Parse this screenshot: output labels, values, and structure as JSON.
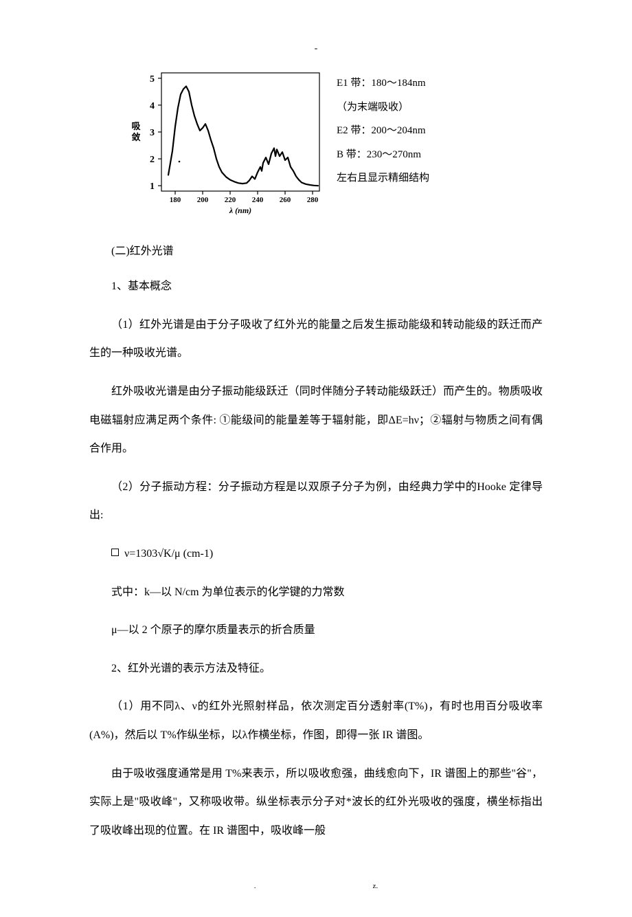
{
  "top_dash": "-",
  "figure": {
    "chart": {
      "type": "line",
      "xlabel": "λ (nm)",
      "ylabel": "吸\n敛",
      "xlim": [
        170,
        285
      ],
      "ylim": [
        0.8,
        5.2
      ],
      "xtick_labels": [
        "180",
        "200",
        "220",
        "240",
        "260",
        "280"
      ],
      "xtick_positions": [
        180,
        200,
        220,
        240,
        260,
        280
      ],
      "ytick_labels": [
        "1",
        "2",
        "3",
        "4",
        "5"
      ],
      "ytick_positions": [
        1,
        2,
        3,
        4,
        5
      ],
      "line_color": "#000000",
      "line_width": 2.2,
      "background_color": "#ffffff",
      "frame_color": "#000000",
      "frame_width": 1.2,
      "curve_points": [
        [
          175,
          1.4
        ],
        [
          178,
          2.3
        ],
        [
          180,
          3.2
        ],
        [
          182,
          3.9
        ],
        [
          184,
          4.4
        ],
        [
          186,
          4.6
        ],
        [
          188,
          4.7
        ],
        [
          190,
          4.5
        ],
        [
          192,
          4.0
        ],
        [
          194,
          3.6
        ],
        [
          196,
          3.3
        ],
        [
          198,
          3.05
        ],
        [
          200,
          3.15
        ],
        [
          202,
          3.3
        ],
        [
          204,
          3.05
        ],
        [
          206,
          2.7
        ],
        [
          208,
          2.4
        ],
        [
          210,
          2.0
        ],
        [
          212,
          1.7
        ],
        [
          214,
          1.5
        ],
        [
          217,
          1.33
        ],
        [
          220,
          1.22
        ],
        [
          223,
          1.15
        ],
        [
          226,
          1.1
        ],
        [
          229,
          1.08
        ],
        [
          232,
          1.1
        ],
        [
          234,
          1.2
        ],
        [
          236,
          1.35
        ],
        [
          238,
          1.25
        ],
        [
          240,
          1.5
        ],
        [
          242,
          1.7
        ],
        [
          243,
          1.55
        ],
        [
          244,
          1.85
        ],
        [
          246,
          2.05
        ],
        [
          248,
          1.8
        ],
        [
          250,
          2.2
        ],
        [
          252,
          2.4
        ],
        [
          253,
          2.1
        ],
        [
          254,
          2.35
        ],
        [
          256,
          2.1
        ],
        [
          258,
          2.25
        ],
        [
          260,
          1.95
        ],
        [
          262,
          2.05
        ],
        [
          264,
          1.7
        ],
        [
          266,
          1.55
        ],
        [
          268,
          1.35
        ],
        [
          270,
          1.22
        ],
        [
          272,
          1.12
        ],
        [
          275,
          1.06
        ],
        [
          278,
          1.03
        ],
        [
          281,
          1.01
        ],
        [
          284,
          1.0
        ]
      ]
    },
    "annotations": {
      "line1": "E1 带：180～184nm",
      "line2": "（为末端吸收）",
      "line3": "E2 带：200～204nm",
      "line4": "B 带：230～270nm",
      "line5": "左右且显示精细结构"
    }
  },
  "body": {
    "sec2_title": "(二)红外光谱",
    "p1": "1、基本概念",
    "p2": "（1）红外光谱是由于分子吸收了红外光的能量之后发生振动能级和转动能级的跃迁而产生的一种吸收光谱。",
    "p3": "红外吸收光谱是由分子振动能级跃迁（同时伴随分子转动能级跃迁）而产生的。物质吸收电磁辐射应满足两个条件: ①能级间的能量差等于辐射能，即ΔE=hν；②辐射与物质之间有偶合作用。",
    "p4": "（2）分子振动方程：分子振动方程是以双原子分子为例，由经典力学中的Hooke 定律导出:",
    "formula": "ν=1303√K/μ   (cm-1)",
    "p5": "式中：k—以 N/cm 为单位表示的化学键的力常数",
    "p6": "μ—以 2 个原子的摩尔质量表示的折合质量",
    "p7": "2、红外光谱的表示方法及特征。",
    "p8": "（1）用不同λ、ν的红外光照射样品，依次测定百分透射率(T%)，有时也用百分吸收率(A%)，然后以 T%作纵坐标，以λ作横坐标，作图，即得一张 IR 谱图。",
    "p9": "由于吸收强度通常是用 T%来表示，所以吸收愈强，曲线愈向下，IR 谱图上的那些\"谷\"，实际上是\"吸收峰\"，又称吸收带。纵坐标表示分子对*波长的红外光吸收的强度，横坐标指出了吸收峰出现的位置。在 IR 谱图中，吸收峰一般"
  },
  "footer": {
    "dot": ".",
    "z": "z."
  }
}
